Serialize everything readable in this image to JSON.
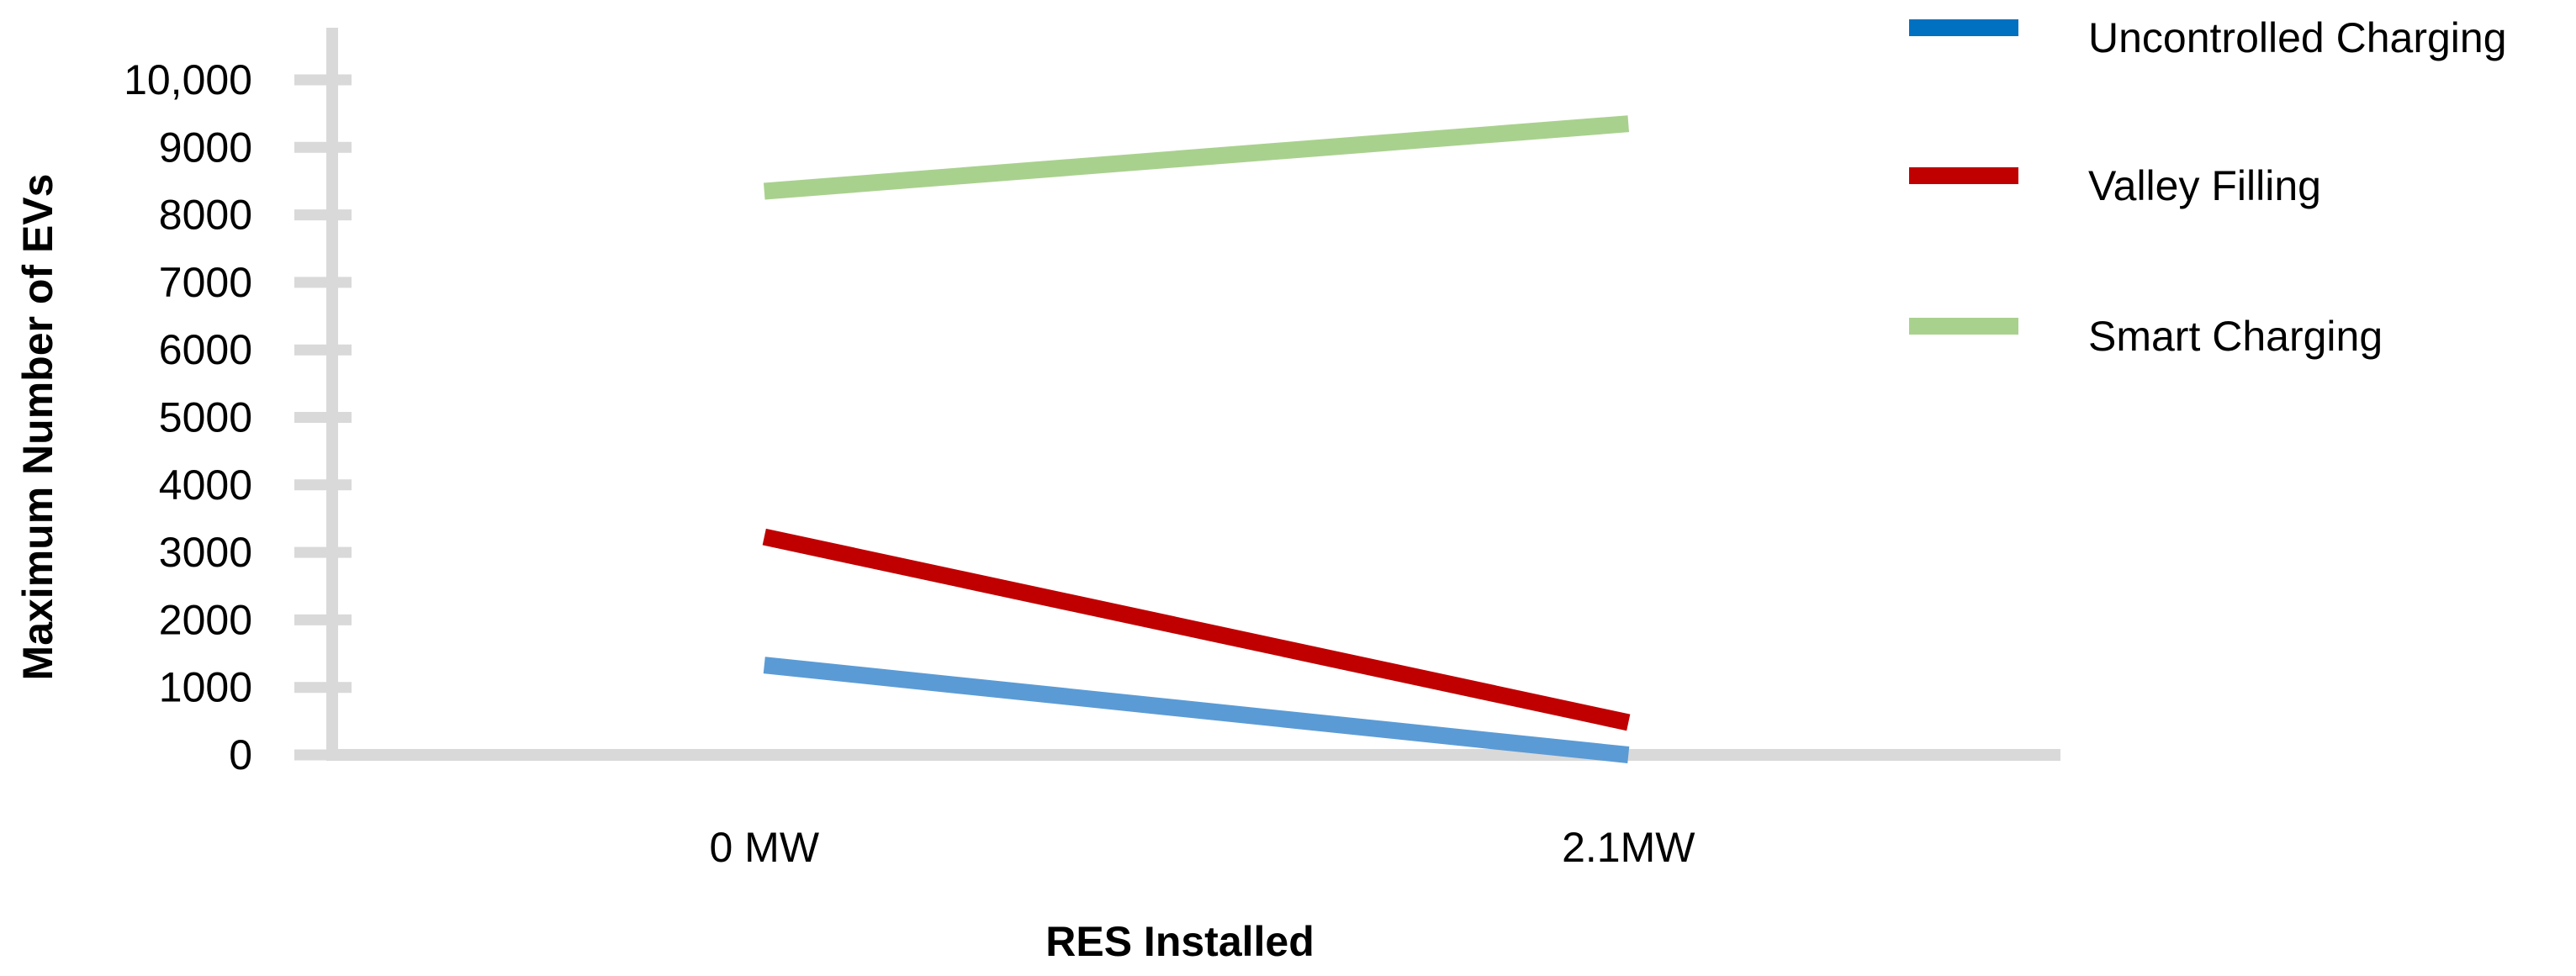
{
  "chart_data": {
    "type": "line",
    "xlabel": "RES Installed",
    "ylabel": "Maximum Number of EVs",
    "categories": [
      "0 MW",
      "2.1MW"
    ],
    "ylim": [
      0,
      10000
    ],
    "y_ticks": [
      0,
      1000,
      2000,
      3000,
      4000,
      5000,
      6000,
      7000,
      8000,
      9000,
      10000
    ],
    "y_tick_labels": [
      "0",
      "1000",
      "2000",
      "3000",
      "4000",
      "5000",
      "6000",
      "7000",
      "8000",
      "9000",
      "10,000"
    ],
    "grid": false,
    "legend_position": "top-right",
    "series": [
      {
        "name": "Uncontrolled Charging",
        "values": [
          1330,
          0
        ],
        "color": "#5b9bd5",
        "legend_color": "#0070c0"
      },
      {
        "name": "Valley Filling",
        "values": [
          3230,
          480
        ],
        "color": "#c00000",
        "legend_color": "#c00000"
      },
      {
        "name": "Smart Charging",
        "values": [
          8350,
          9350
        ],
        "color": "#a9d18e",
        "legend_color": "#a9d18e"
      }
    ],
    "axis_color": "#d9d9d9"
  }
}
